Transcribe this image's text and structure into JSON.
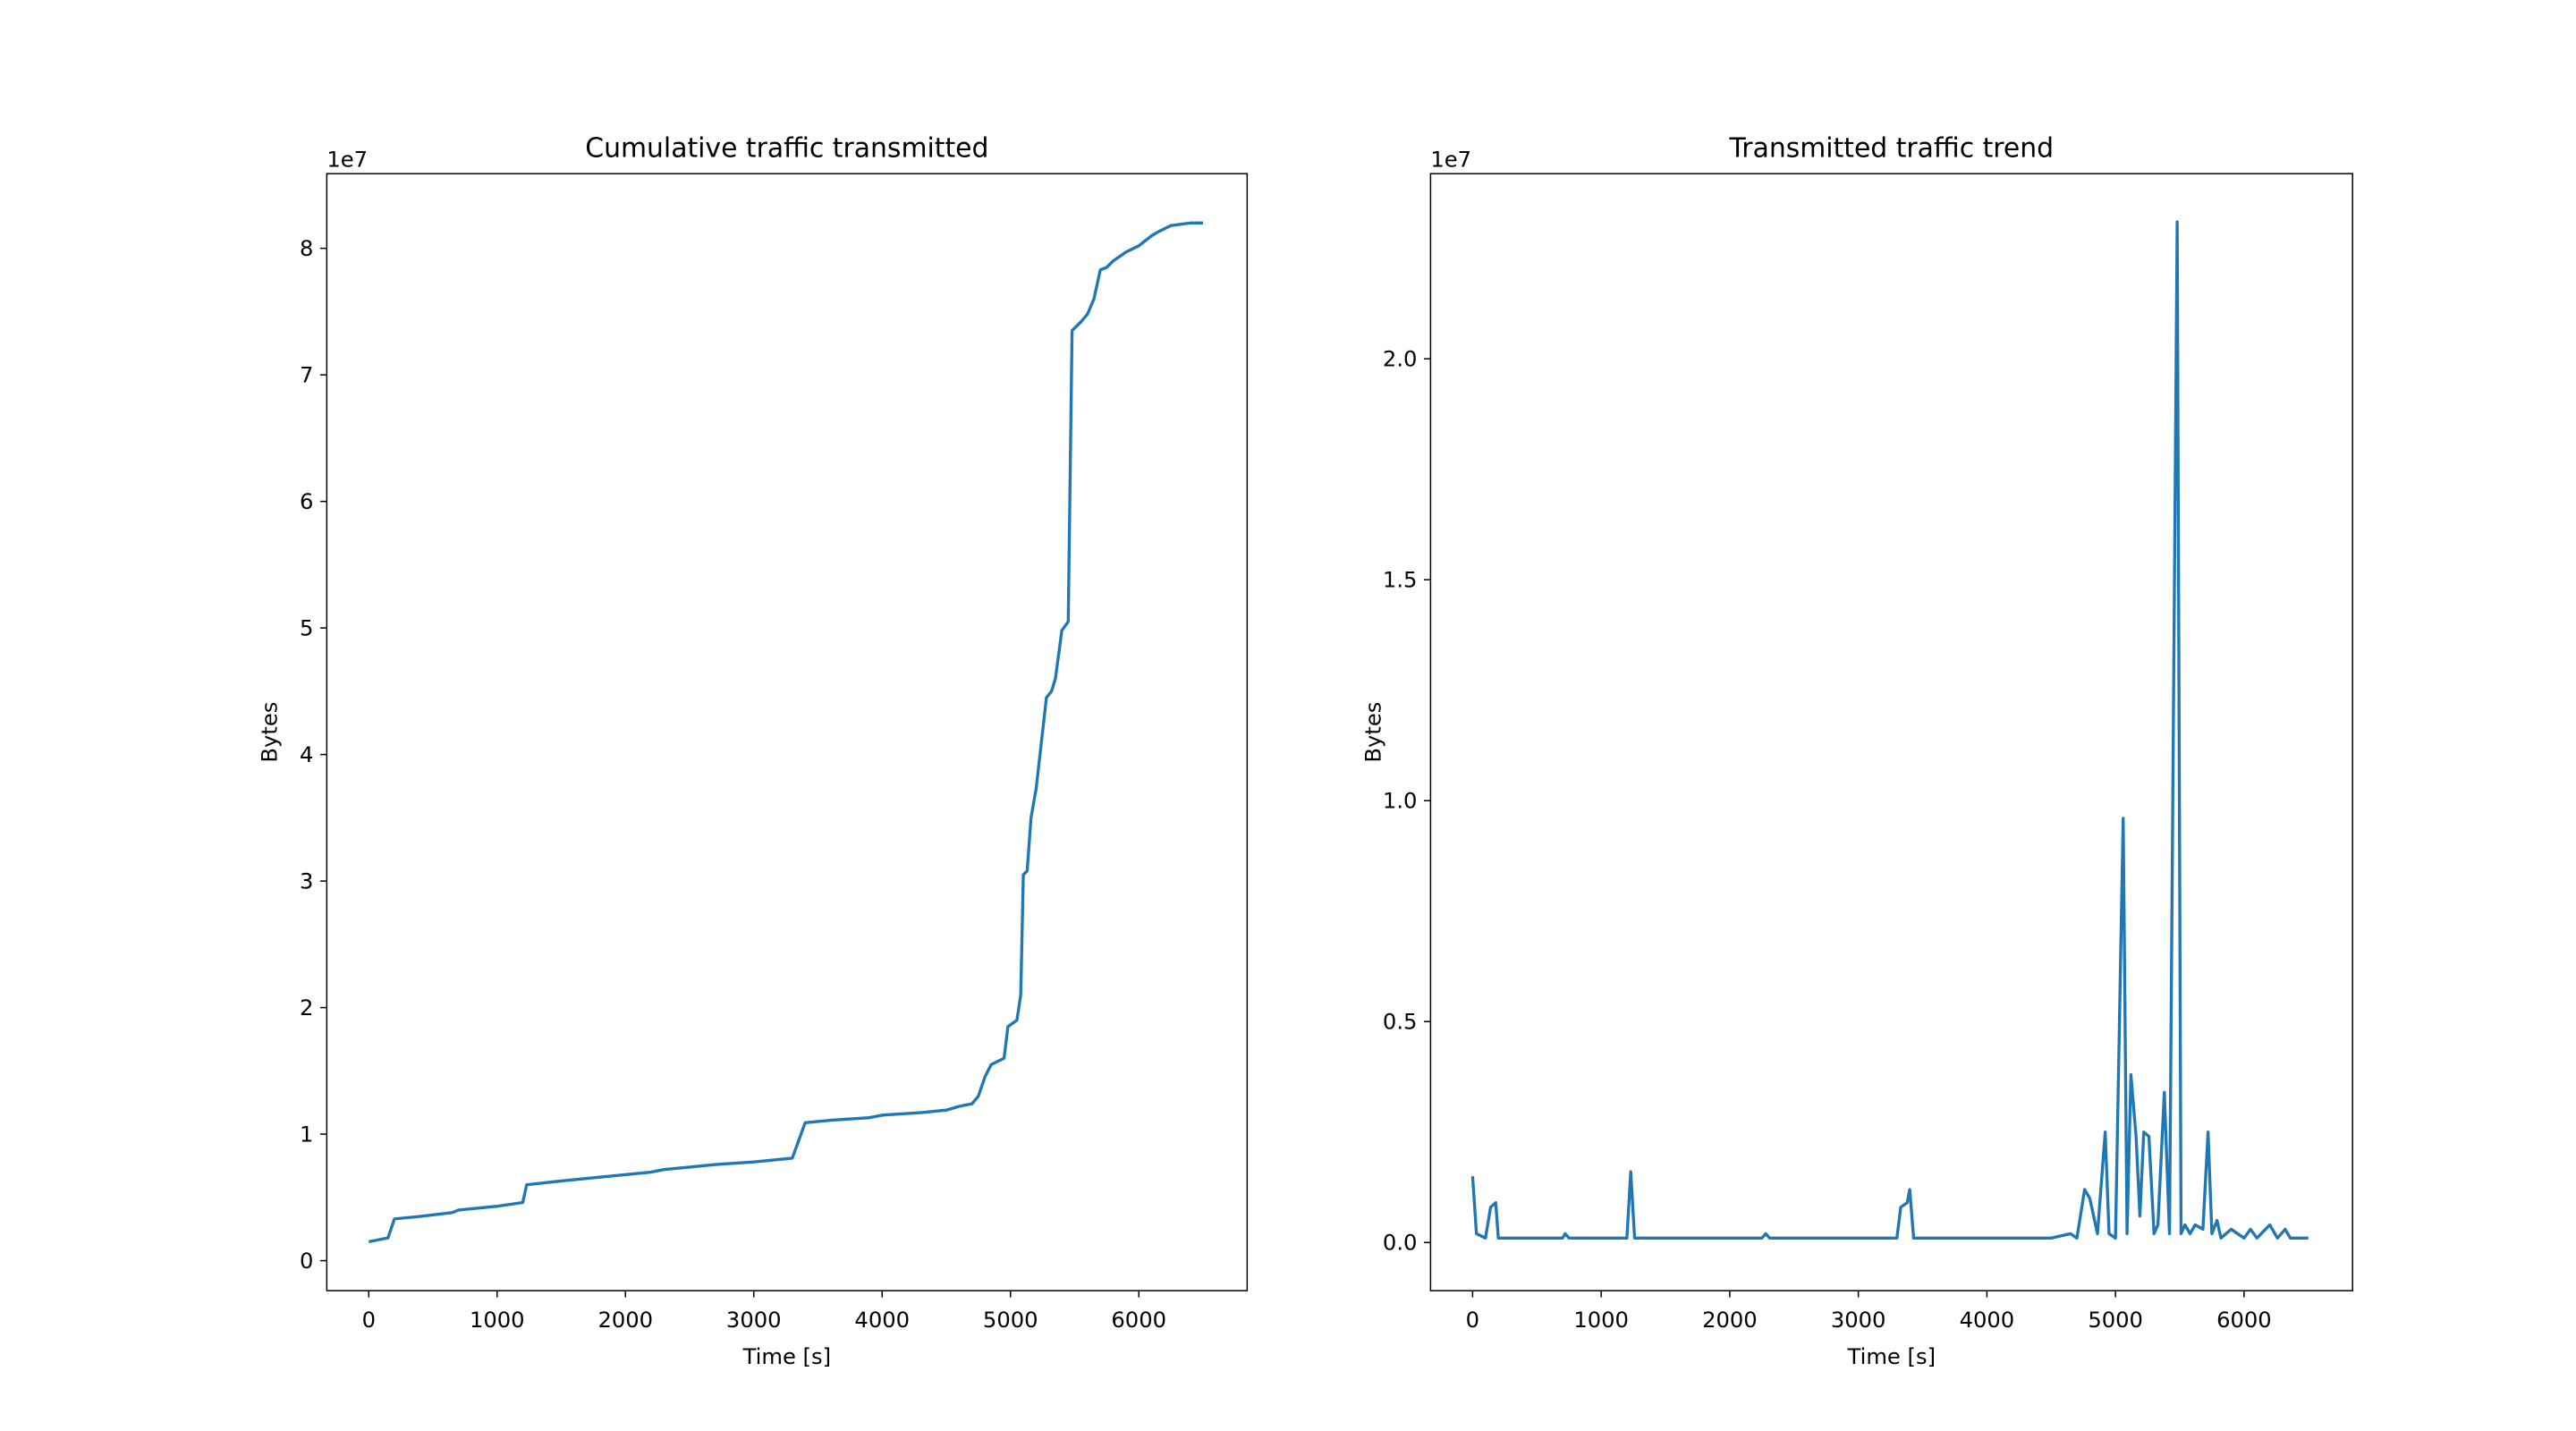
{
  "chart_data": [
    {
      "type": "line",
      "title": "Cumulative traffic transmitted",
      "x_label": "Time [s]",
      "y_label": "Bytes",
      "offset_text": "1e7",
      "xlim": [
        -327,
        6844
      ],
      "xticks": [
        0,
        1000,
        2000,
        3000,
        4000,
        5000,
        6000
      ],
      "ylim": [
        -0.237,
        8.59
      ],
      "yticks": [
        0,
        1,
        2,
        3,
        4,
        5,
        6,
        7,
        8
      ],
      "series": [
        {
          "color": "#1f77b4",
          "x": [
            0,
            100,
            150,
            200,
            400,
            650,
            700,
            1000,
            1200,
            1230,
            1500,
            1800,
            2200,
            2300,
            2700,
            3000,
            3300,
            3350,
            3400,
            3600,
            3900,
            4000,
            4300,
            4500,
            4600,
            4700,
            4750,
            4800,
            4850,
            4950,
            4980,
            5050,
            5080,
            5100,
            5130,
            5160,
            5200,
            5280,
            5320,
            5350,
            5400,
            5450,
            5480,
            5550,
            5600,
            5650,
            5700,
            5750,
            5800,
            5900,
            6000,
            6100,
            6150,
            6250,
            6400,
            6500
          ],
          "values": [
            0.15,
            0.17,
            0.18,
            0.33,
            0.35,
            0.38,
            0.4,
            0.43,
            0.46,
            0.6,
            0.63,
            0.66,
            0.7,
            0.72,
            0.76,
            0.78,
            0.81,
            0.95,
            1.09,
            1.11,
            1.13,
            1.15,
            1.17,
            1.19,
            1.22,
            1.24,
            1.3,
            1.45,
            1.55,
            1.6,
            1.85,
            1.9,
            2.1,
            3.05,
            3.08,
            3.5,
            3.73,
            4.45,
            4.5,
            4.6,
            4.98,
            5.05,
            7.35,
            7.42,
            7.48,
            7.6,
            7.83,
            7.85,
            7.9,
            7.97,
            8.02,
            8.1,
            8.13,
            8.18,
            8.2,
            8.2
          ]
        }
      ]
    },
    {
      "type": "line",
      "title": "Transmitted traffic trend",
      "x_label": "Time [s]",
      "y_label": "Bytes",
      "offset_text": "1e7",
      "xlim": [
        -327,
        6844
      ],
      "xticks": [
        0,
        1000,
        2000,
        3000,
        4000,
        5000,
        6000
      ],
      "ylim": [
        -0.109,
        2.419
      ],
      "yticks": [
        {
          "value": 0,
          "label": "0.0"
        },
        0.5,
        {
          "value": 1,
          "label": "1.0"
        },
        1.5,
        {
          "value": 2,
          "label": "2.0"
        }
      ],
      "series": [
        {
          "color": "#1f77b4",
          "x": [
            0,
            30,
            100,
            140,
            180,
            200,
            300,
            700,
            720,
            750,
            1200,
            1230,
            1260,
            2250,
            2280,
            2310,
            3300,
            3330,
            3380,
            3400,
            3430,
            4500,
            4650,
            4700,
            4760,
            4800,
            4860,
            4920,
            4950,
            5000,
            5060,
            5090,
            5120,
            5160,
            5190,
            5220,
            5260,
            5300,
            5330,
            5380,
            5420,
            5480,
            5510,
            5540,
            5580,
            5620,
            5680,
            5720,
            5750,
            5790,
            5820,
            5900,
            6000,
            6050,
            6100,
            6200,
            6260,
            6320,
            6360,
            6450,
            6500
          ],
          "values": [
            0.15,
            0.02,
            0.01,
            0.08,
            0.09,
            0.01,
            0.01,
            0.01,
            0.02,
            0.01,
            0.01,
            0.16,
            0.01,
            0.01,
            0.02,
            0.01,
            0.01,
            0.08,
            0.09,
            0.12,
            0.01,
            0.01,
            0.02,
            0.01,
            0.12,
            0.1,
            0.02,
            0.25,
            0.02,
            0.01,
            0.96,
            0.02,
            0.38,
            0.24,
            0.06,
            0.25,
            0.24,
            0.02,
            0.04,
            0.34,
            0.02,
            2.31,
            0.02,
            0.04,
            0.02,
            0.04,
            0.03,
            0.25,
            0.02,
            0.05,
            0.01,
            0.03,
            0.01,
            0.03,
            0.01,
            0.04,
            0.01,
            0.03,
            0.01,
            0.01,
            0.01
          ]
        }
      ]
    }
  ]
}
